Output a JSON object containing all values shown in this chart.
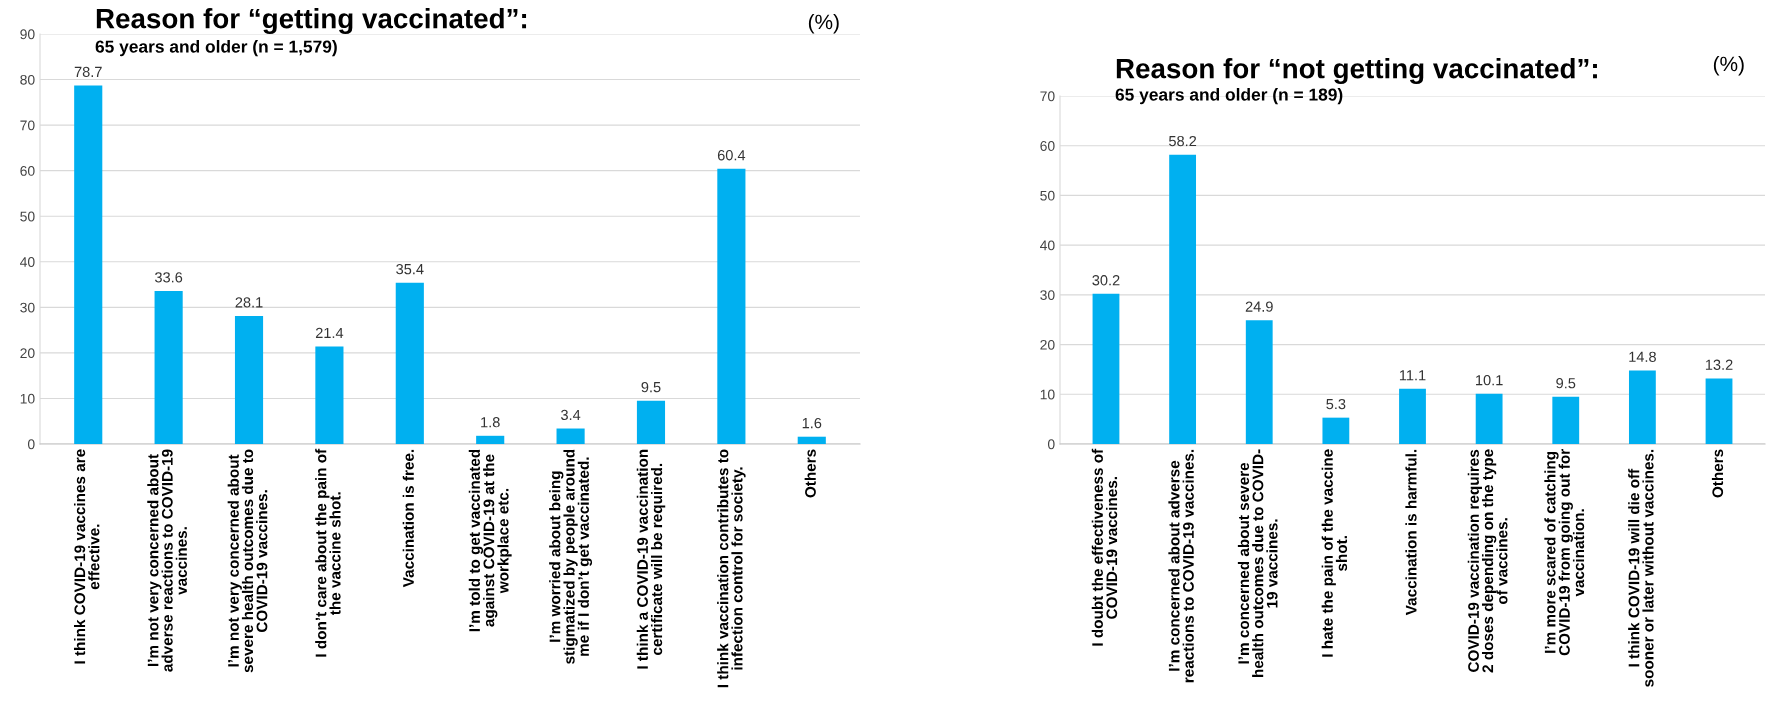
{
  "chart_data": [
    {
      "type": "bar",
      "title": "Reason for “getting vaccinated”:",
      "subtitle": "65 years and older (n = 1,579)",
      "annotations": [
        "(%)"
      ],
      "categories": [
        "I think COVID-19 vaccines are\neffective.",
        "I’m not very concerned about\nadverse reactions to COVID-19\nvaccines.",
        "I’m not very concerned about\nsevere health outcomes due to\nCOVID-19 vaccines.",
        "I don’t care about the pain of\nthe vaccine shot.",
        "Vaccination is free.",
        "I’m told to get vaccinated\nagainst COVID-19 at the\nworkplace etc.",
        "I’m worried about being\nstigmatized by people around\nme if I don’t get vaccinated.",
        "I think a COVID-19 vaccination\ncertificate will be required.",
        "I think vaccination contributes to\ninfection control for society.",
        "Others"
      ],
      "values": [
        78.7,
        33.6,
        28.1,
        21.4,
        35.4,
        1.8,
        3.4,
        9.5,
        60.4,
        1.6
      ],
      "color": "#00b0f0",
      "ylim": [
        0,
        90
      ],
      "yticks": [
        0,
        10,
        20,
        30,
        40,
        50,
        60,
        70,
        80,
        90
      ],
      "grid": "y",
      "data_labels": true
    },
    {
      "type": "bar",
      "title": "Reason for “not getting vaccinated”:",
      "subtitle": "65 years and older (n = 189)",
      "annotations": [
        "(%)"
      ],
      "categories": [
        "I doubt the effectiveness of\nCOVID-19 vaccines.",
        "I’m concerned about adverse\nreactions to COVID-19 vaccines.",
        "I’m concerned about severe\nhealth outcomes due to COVID-\n19 vaccines.",
        "I hate the pain of the vaccine\nshot.",
        "Vaccination is harmful.",
        "COVID-19 vaccination requires\n2 doses depending on the type\nof vaccines.",
        "I’m more scared of catching\nCOVID-19 from going out for\nvaccination.",
        "I think COVID-19 will die off\nsooner or later without vaccines.",
        "Others"
      ],
      "values": [
        30.2,
        58.2,
        24.9,
        5.3,
        11.1,
        10.1,
        9.5,
        14.8,
        13.2
      ],
      "color": "#00b0f0",
      "ylim": [
        0,
        70
      ],
      "yticks": [
        0,
        10,
        20,
        30,
        40,
        50,
        60,
        70
      ],
      "grid": "y",
      "data_labels": true
    }
  ]
}
